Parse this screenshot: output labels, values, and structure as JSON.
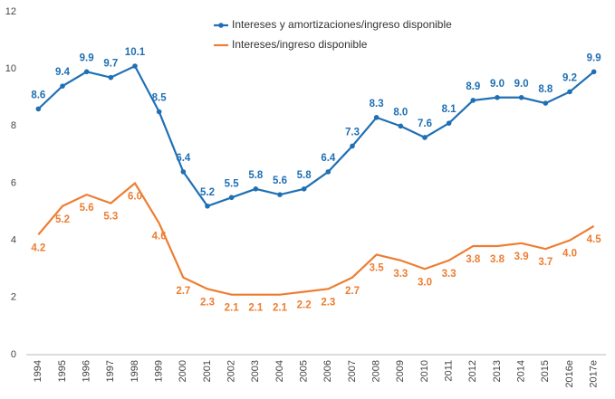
{
  "chart_data": {
    "type": "line",
    "categories": [
      "1994",
      "1995",
      "1996",
      "1997",
      "1998",
      "1999",
      "2000",
      "2001",
      "2002",
      "2003",
      "2004",
      "2005",
      "2006",
      "2007",
      "2008",
      "2009",
      "2010",
      "2011",
      "2012",
      "2013",
      "2014",
      "2015",
      "2016e",
      "2017e"
    ],
    "series": [
      {
        "name": "Intereses y amortizaciones/ingreso disponible",
        "color": "#1f6fb4",
        "markers": true,
        "label_position": "above",
        "values": [
          8.6,
          9.4,
          9.9,
          9.7,
          10.1,
          8.5,
          6.4,
          5.2,
          5.5,
          5.8,
          5.6,
          5.8,
          6.4,
          7.3,
          8.3,
          8.0,
          7.6,
          8.1,
          8.9,
          9.0,
          9.0,
          8.8,
          9.2,
          9.9
        ],
        "value_labels": [
          "8.6",
          "9.4",
          "9.9",
          "9.7",
          "10.1",
          "8.5",
          "6.4",
          "5.2",
          "5.5",
          "5.8",
          "5.6",
          "5.8",
          "6.4",
          "7.3",
          "8.3",
          "8.0",
          "7.6",
          "8.1",
          "8.9",
          "9.0",
          "9.0",
          "8.8",
          "9.2",
          "9.9"
        ]
      },
      {
        "name": "Intereses/ingreso disponible",
        "color": "#ed7d31",
        "markers": false,
        "label_position": "below",
        "values": [
          4.2,
          5.2,
          5.6,
          5.3,
          6.0,
          4.6,
          2.7,
          2.3,
          2.1,
          2.1,
          2.1,
          2.2,
          2.3,
          2.7,
          3.5,
          3.3,
          3.0,
          3.3,
          3.8,
          3.8,
          3.9,
          3.7,
          4.0,
          4.5
        ],
        "value_labels": [
          "4.2",
          "5.2",
          "5.6",
          "5.3",
          "6.0",
          "4.6",
          "2.7",
          "2.3",
          "2.1",
          "2.1",
          "2.1",
          "2.2",
          "2.3",
          "2.7",
          "3.5",
          "3.3",
          "3.0",
          "3.3",
          "3.8",
          "3.8",
          "3.9",
          "3.7",
          "4.0",
          "4.5"
        ]
      }
    ],
    "ylim": [
      0,
      12
    ],
    "yticks": [
      0,
      2,
      4,
      6,
      8,
      10,
      12
    ],
    "grid": false
  }
}
